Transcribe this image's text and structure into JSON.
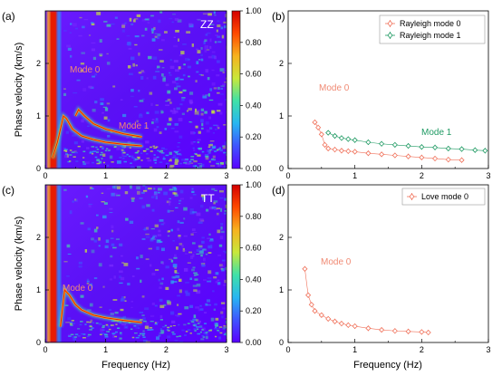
{
  "colorbar_ticks": [
    "0.00",
    "0.20",
    "0.40",
    "0.60",
    "0.80",
    "1.00"
  ],
  "colorbar_stops": [
    "#5a00ff",
    "#3f54ff",
    "#27b6f2",
    "#3fe1a8",
    "#c8e83a",
    "#f7b21e",
    "#ff4a00",
    "#d40000"
  ],
  "panels": {
    "a": {
      "label": "(a)",
      "component": "ZZ"
    },
    "b": {
      "label": "(b)"
    },
    "c": {
      "label": "(c)",
      "component": "TT"
    },
    "d": {
      "label": "(d)"
    }
  },
  "colors": {
    "rayleigh_mode0": "#f0715a",
    "rayleigh_mode1": "#1f9a63",
    "love_mode0": "#f0715a",
    "annotation_orange": "#f08a74"
  },
  "chart_data": [
    {
      "panel": "a",
      "type": "heatmap",
      "ylabel": "Phase velocity (km/s)",
      "xlabel": "",
      "xlim": [
        0,
        3
      ],
      "ylim": [
        0,
        3
      ],
      "xticks": [
        "0",
        "1",
        "2",
        "3"
      ],
      "yticks": [
        "0",
        "1",
        "2"
      ],
      "annotations": [
        "Mode 0",
        "Mode 1"
      ],
      "ridges": [
        {
          "name": "Mode 0",
          "x": [
            0.12,
            0.2,
            0.3,
            0.35,
            0.45,
            0.6,
            0.8,
            1.0,
            1.3,
            1.6
          ],
          "y": [
            0.2,
            0.5,
            1.0,
            0.95,
            0.75,
            0.62,
            0.55,
            0.5,
            0.46,
            0.43
          ]
        },
        {
          "name": "Mode 1",
          "x": [
            0.5,
            0.55,
            0.65,
            0.8,
            1.0,
            1.3,
            1.6
          ],
          "y": [
            1.0,
            1.12,
            1.0,
            0.85,
            0.75,
            0.66,
            0.6
          ]
        }
      ]
    },
    {
      "panel": "b",
      "type": "scatter",
      "xlabel": "",
      "ylabel": "",
      "xlim": [
        0,
        3
      ],
      "ylim": [
        0,
        3
      ],
      "xticks": [
        "0",
        "1",
        "2",
        "3"
      ],
      "yticks": [
        "0",
        "1",
        "2"
      ],
      "legend_position": "top-right",
      "annotations": [
        "Mode 0",
        "Mode 1"
      ],
      "series": [
        {
          "name": "Rayleigh mode 0",
          "x": [
            0.4,
            0.45,
            0.5,
            0.55,
            0.6,
            0.7,
            0.8,
            0.9,
            1.0,
            1.2,
            1.4,
            1.6,
            1.8,
            2.0,
            2.2,
            2.4,
            2.6
          ],
          "y": [
            0.88,
            0.78,
            0.65,
            0.45,
            0.38,
            0.36,
            0.34,
            0.33,
            0.32,
            0.29,
            0.27,
            0.25,
            0.23,
            0.21,
            0.19,
            0.17,
            0.16
          ]
        },
        {
          "name": "Rayleigh mode 1",
          "x": [
            0.6,
            0.7,
            0.8,
            0.9,
            1.0,
            1.2,
            1.4,
            1.6,
            1.8,
            2.0,
            2.2,
            2.4,
            2.6,
            2.8,
            2.95
          ],
          "y": [
            0.68,
            0.62,
            0.58,
            0.56,
            0.54,
            0.5,
            0.47,
            0.45,
            0.43,
            0.41,
            0.4,
            0.38,
            0.37,
            0.35,
            0.34
          ]
        }
      ]
    },
    {
      "panel": "c",
      "type": "heatmap",
      "xlabel": "Frequency (Hz)",
      "ylabel": "Phase velocity (km/s)",
      "xlim": [
        0,
        3
      ],
      "ylim": [
        0,
        3
      ],
      "xticks": [
        "0",
        "1",
        "2",
        "3"
      ],
      "yticks": [
        "0",
        "1",
        "2"
      ],
      "annotations": [
        "Mode 0"
      ],
      "ridges": [
        {
          "name": "Mode 0",
          "x": [
            0.25,
            0.28,
            0.32,
            0.4,
            0.5,
            0.6,
            0.8,
            1.0,
            1.3,
            1.6
          ],
          "y": [
            0.3,
            0.6,
            1.0,
            0.9,
            0.72,
            0.62,
            0.52,
            0.47,
            0.42,
            0.38
          ]
        }
      ]
    },
    {
      "panel": "d",
      "type": "scatter",
      "xlabel": "Frequency (Hz)",
      "ylabel": "",
      "xlim": [
        0,
        3
      ],
      "ylim": [
        0,
        3
      ],
      "xticks": [
        "0",
        "1",
        "2",
        "3"
      ],
      "yticks": [
        "0",
        "1",
        "2"
      ],
      "legend_position": "top-right",
      "annotations": [
        "Mode 0"
      ],
      "series": [
        {
          "name": "Love mode 0",
          "x": [
            0.25,
            0.3,
            0.35,
            0.4,
            0.5,
            0.6,
            0.7,
            0.8,
            0.9,
            1.0,
            1.2,
            1.4,
            1.6,
            1.8,
            2.0,
            2.1
          ],
          "y": [
            1.4,
            0.9,
            0.72,
            0.6,
            0.52,
            0.45,
            0.4,
            0.36,
            0.33,
            0.31,
            0.27,
            0.24,
            0.22,
            0.21,
            0.2,
            0.19
          ]
        }
      ]
    }
  ]
}
